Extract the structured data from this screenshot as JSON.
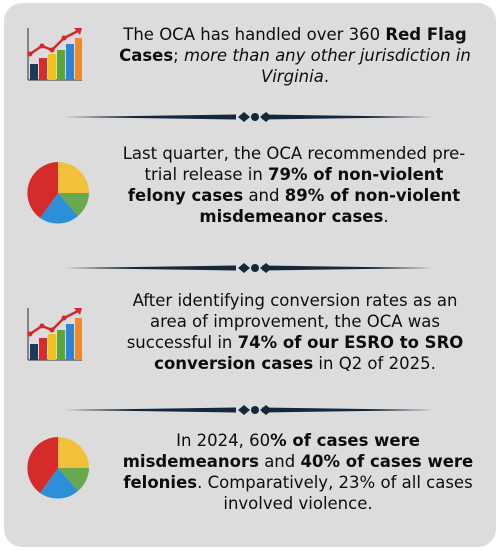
{
  "colors": {
    "card_bg": "#dcdcdc",
    "divider": "#15283a",
    "trend_line": "#d62828",
    "bar_navy": "#1b3a5c",
    "bar_red": "#d82b2b",
    "bar_yellow": "#f2c31c",
    "bar_green": "#5aa63a",
    "bar_blue": "#2b84d6",
    "pie_red": "#d62b2b",
    "pie_yellow": "#f2c13a",
    "pie_green": "#6aa84f",
    "pie_blue": "#2d8fd8"
  },
  "icons": [
    "bar-chart-trend-icon",
    "pie-chart-icon",
    "bar-chart-trend-icon",
    "pie-chart-icon"
  ],
  "stats": [
    {
      "p1": "The OCA has handled over 360 ",
      "p2": "Red Flag Cases",
      "p3": "; ",
      "p4": "more than any other jurisdiction in Virginia",
      "p5": "."
    },
    {
      "p1": "Last quarter, the  OCA recommended pre-trial release in ",
      "p2": "79% of non-violent felony cases",
      "p3": " and ",
      "p4": "89% of non-violent misdemeanor cases",
      "p5": "."
    },
    {
      "p1": "After identifying conversion rates as an area of improvement, the OCA was successful in ",
      "p2": "74% of our ESRO to SRO conversion cases",
      "p3": " in Q2 of 2025."
    },
    {
      "p1": "In 2024, 60",
      "p2": "% of cases were misdemeanors",
      "p3": " and ",
      "p4": "40% of cases were felonies",
      "p5": ". Comparatively, 23% of all cases involved violence."
    }
  ]
}
